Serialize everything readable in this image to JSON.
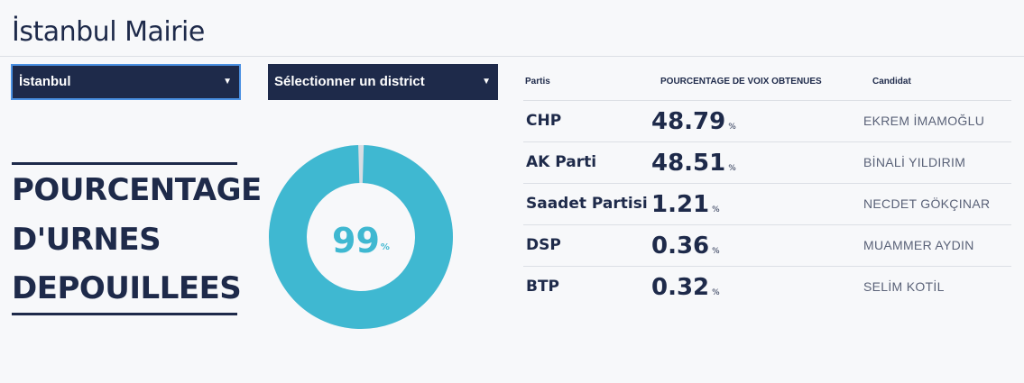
{
  "page": {
    "title": "İstanbul Mairie"
  },
  "filters": {
    "city": {
      "value": "İstanbul",
      "arrow": "▼"
    },
    "district": {
      "placeholder": "Sélectionner un district",
      "arrow": "▼"
    }
  },
  "headline": {
    "lines": [
      "POURCENTAGE",
      "D'URNES",
      "DEPOUILLEES"
    ]
  },
  "counted": {
    "value": "99",
    "unit": "%",
    "fraction": 0.99,
    "fill_color": "#3fb8d1",
    "remainder_color": "#d8dde3"
  },
  "results": {
    "headers": {
      "party": "Partis",
      "percentage": "POURCENTAGE DE VOIX OBTENUES",
      "candidate": "Candidat"
    },
    "unit": "%",
    "rows": [
      {
        "party": "CHP",
        "percentage": "48.79",
        "candidate": "EKREM İMAMOĞLU"
      },
      {
        "party": "AK Parti",
        "percentage": "48.51",
        "candidate": "BİNALİ YILDIRIM"
      },
      {
        "party": "Saadet Partisi",
        "percentage": "1.21",
        "candidate": "NECDET GÖKÇINAR"
      },
      {
        "party": "DSP",
        "percentage": "0.36",
        "candidate": "MUAMMER AYDIN"
      },
      {
        "party": "BTP",
        "percentage": "0.32",
        "candidate": "SELİM KOTİL"
      }
    ]
  },
  "colors": {
    "navy": "#1e2a4a",
    "teal": "#3fb8d1",
    "background": "#f7f8fa"
  }
}
